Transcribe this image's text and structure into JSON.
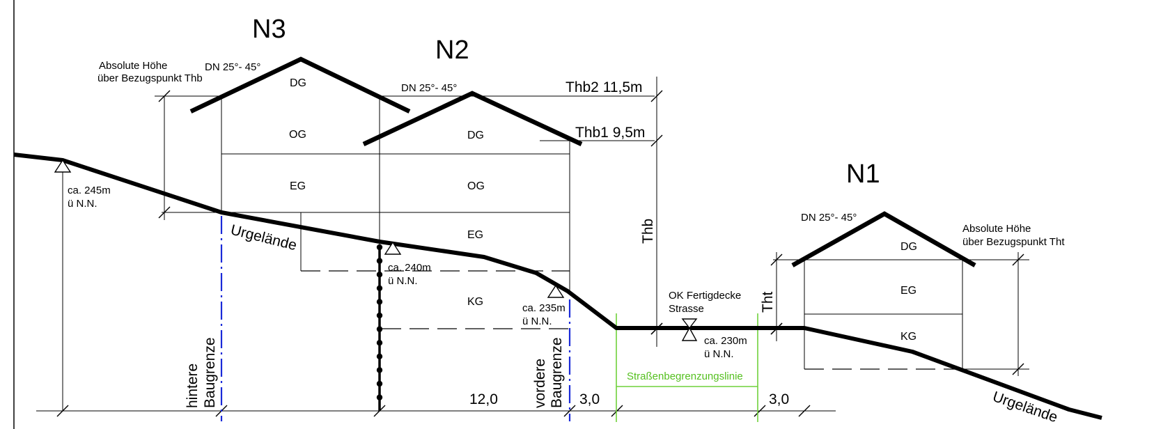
{
  "houses": {
    "n3": {
      "label": "N3",
      "roof_pitch": "DN 25°- 45°",
      "floors": [
        "DG",
        "OG",
        "EG"
      ]
    },
    "n2": {
      "label": "N2",
      "roof_pitch": "DN 25°- 45°",
      "floors": [
        "DG",
        "OG",
        "EG",
        "KG"
      ]
    },
    "n1": {
      "label": "N1",
      "roof_pitch": "DN 25°- 45°",
      "floors": [
        "DG",
        "EG",
        "KG"
      ]
    }
  },
  "notes": {
    "abs_height_thb": [
      "Absolute Höhe",
      "über Bezugspunkt Thb"
    ],
    "abs_height_tht": [
      "Absolute Höhe",
      "über Bezugspunkt Tht"
    ],
    "road": [
      "OK Fertigdecke",
      "Strasse"
    ]
  },
  "heights": {
    "thb2": "Thb2 11,5m",
    "thb1": "Thb1 9,5m",
    "thb": "Thb",
    "tht": "Tht"
  },
  "elevations": {
    "e245": [
      "ca. 245m",
      "ü N.N."
    ],
    "e240": [
      "ca. 240m",
      "ü N.N."
    ],
    "e235": [
      "ca. 235m",
      "ü N.N."
    ],
    "e230": [
      "ca. 230m",
      "ü N.N."
    ]
  },
  "terrain_labels": {
    "left": "Urgelände",
    "right": "Urgelände"
  },
  "boundaries": {
    "rear": [
      "hintere",
      "Baugrenze"
    ],
    "front": [
      "vordere",
      "Baugrenze"
    ],
    "street_line": "Straßenbegrenzungslinie"
  },
  "dimensions": {
    "d12": "12,0",
    "d3a": "3,0",
    "d3b": "3,0"
  }
}
